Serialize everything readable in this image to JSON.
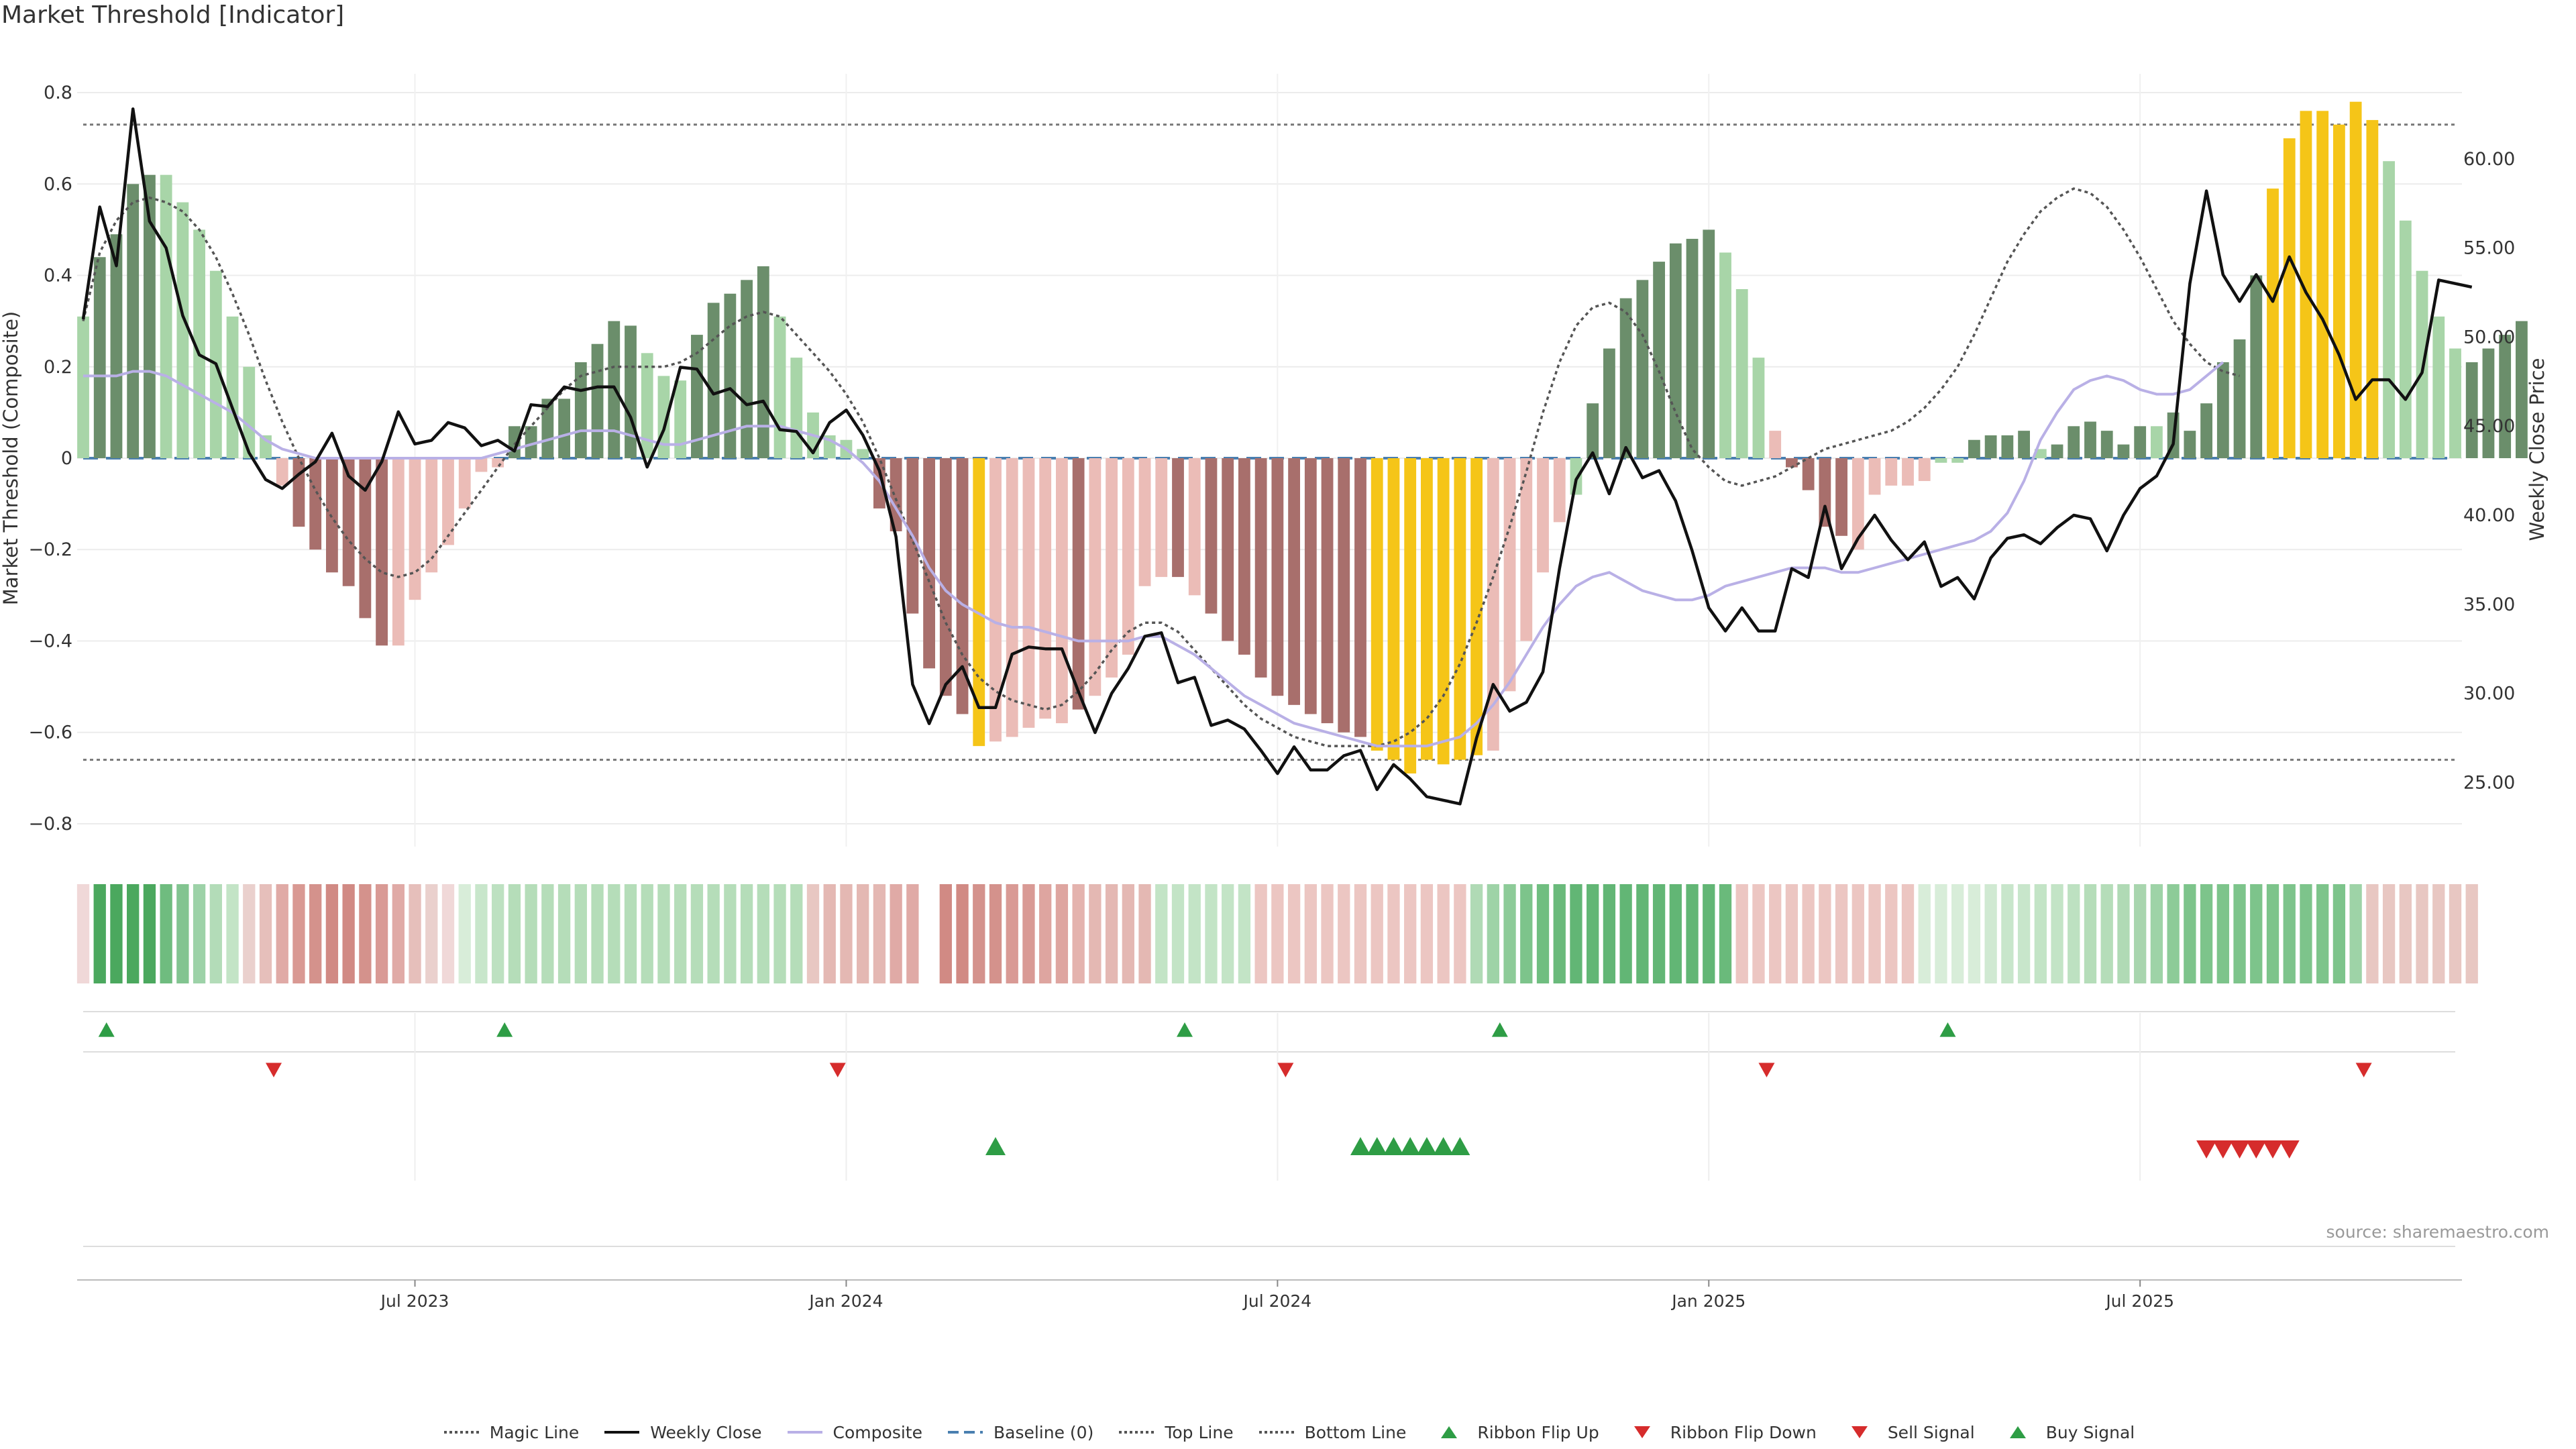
{
  "title": "Market Threshold [Indicator]",
  "source": "source: sharemaestro.com",
  "colors": {
    "dark_green": "#6b8e6b",
    "light_green": "#a8d5a8",
    "dark_red": "#a86f6c",
    "light_red": "#ebbcb7",
    "yellow": "#f5c518",
    "weekly_close": "#111111",
    "composite": "#b9b0e6",
    "magic": "#555555",
    "baseline": "#4a7fb0",
    "threshold_line": "#777777",
    "buy": "#2e9d45",
    "sell": "#d62c2c"
  },
  "chart_data": {
    "type": "bar",
    "ylabel_left": "Market Threshold (Composite)",
    "ylabel_right": "Weekly Close Price",
    "left_ticks": [
      "0.8",
      "0.6",
      "0.4",
      "0.2",
      "0",
      "−0.2",
      "−0.4",
      "−0.6",
      "−0.8"
    ],
    "left_tick_values": [
      0.8,
      0.6,
      0.4,
      0.2,
      0,
      -0.2,
      -0.4,
      -0.6,
      -0.8
    ],
    "right_ticks": [
      "60.00",
      "55.00",
      "50.00",
      "45.00",
      "40.00",
      "35.00",
      "30.00",
      "25.00"
    ],
    "right_tick_values": [
      60,
      55,
      50,
      45,
      40,
      35,
      30,
      25
    ],
    "left_ylim": [
      -0.85,
      0.85
    ],
    "right_ylim": [
      21.4,
      65.0
    ],
    "top_line": 0.73,
    "bottom_line": -0.66,
    "x_ticks": [
      {
        "label": "Jul 2023",
        "week": 20
      },
      {
        "label": "Jan 2024",
        "week": 46
      },
      {
        "label": "Jul 2024",
        "week": 72
      },
      {
        "label": "Jan 2025",
        "week": 98
      },
      {
        "label": "Jul 2025",
        "week": 124
      }
    ],
    "n_weeks": 144,
    "composite_bars": [
      0.31,
      0.44,
      0.49,
      0.6,
      0.62,
      0.62,
      0.56,
      0.5,
      0.41,
      0.31,
      0.2,
      0.05,
      -0.06,
      -0.15,
      -0.2,
      -0.25,
      -0.28,
      -0.35,
      -0.41,
      -0.41,
      -0.31,
      -0.25,
      -0.19,
      -0.11,
      -0.03,
      -0.02,
      0.07,
      0.07,
      0.13,
      0.13,
      0.21,
      0.25,
      0.3,
      0.29,
      0.23,
      0.18,
      0.17,
      0.27,
      0.34,
      0.36,
      0.39,
      0.42,
      0.31,
      0.22,
      0.1,
      0.05,
      0.04,
      0.02,
      -0.11,
      -0.16,
      -0.34,
      -0.46,
      -0.52,
      -0.56,
      -0.63,
      -0.62,
      -0.61,
      -0.59,
      -0.57,
      -0.58,
      -0.55,
      -0.52,
      -0.48,
      -0.43,
      -0.28,
      -0.26,
      -0.26,
      -0.3,
      -0.34,
      -0.4,
      -0.43,
      -0.48,
      -0.52,
      -0.54,
      -0.56,
      -0.58,
      -0.6,
      -0.61,
      -0.64,
      -0.66,
      -0.69,
      -0.66,
      -0.67,
      -0.66,
      -0.65,
      -0.64,
      -0.51,
      -0.4,
      -0.25,
      -0.14,
      -0.08,
      0.12,
      0.24,
      0.35,
      0.39,
      0.43,
      0.47,
      0.48,
      0.5,
      0.45,
      0.37,
      0.22,
      0.06,
      -0.02,
      -0.07,
      -0.15,
      -0.17,
      -0.2,
      -0.08,
      -0.06,
      -0.06,
      -0.05,
      -0.01,
      -0.01,
      0.04,
      0.05,
      0.05,
      0.06,
      0.02,
      0.03,
      0.07,
      0.08,
      0.06,
      0.03,
      0.07,
      0.07,
      0.1,
      0.06,
      0.12,
      0.21,
      0.26,
      0.4,
      0.59,
      0.7,
      0.76,
      0.76,
      0.73,
      0.78,
      0.74,
      0.65,
      0.52,
      0.41,
      0.31,
      0.24,
      0.21,
      0.24,
      0.27,
      0.3
    ],
    "bar_color_classes": [
      "lg",
      "dg",
      "dg",
      "dg",
      "dg",
      "lg",
      "lg",
      "lg",
      "lg",
      "lg",
      "lg",
      "lg",
      "lr",
      "dr",
      "dr",
      "dr",
      "dr",
      "dr",
      "dr",
      "lr",
      "lr",
      "lr",
      "lr",
      "lr",
      "lr",
      "lr",
      "dg",
      "dg",
      "dg",
      "dg",
      "dg",
      "dg",
      "dg",
      "dg",
      "lg",
      "lg",
      "lg",
      "dg",
      "dg",
      "dg",
      "dg",
      "dg",
      "lg",
      "lg",
      "lg",
      "lg",
      "lg",
      "lg",
      "dr",
      "dr",
      "dr",
      "dr",
      "dr",
      "dr",
      "y",
      "lr",
      "lr",
      "lr",
      "lr",
      "lr",
      "dr",
      "lr",
      "lr",
      "lr",
      "lr",
      "lr",
      "dr",
      "lr",
      "dr",
      "dr",
      "dr",
      "dr",
      "dr",
      "dr",
      "dr",
      "dr",
      "dr",
      "dr",
      "y",
      "y",
      "y",
      "y",
      "y",
      "y",
      "y",
      "lr",
      "lr",
      "lr",
      "lr",
      "lr",
      "lg",
      "dg",
      "dg",
      "dg",
      "dg",
      "dg",
      "dg",
      "dg",
      "dg",
      "lg",
      "lg",
      "lg",
      "lr",
      "dr",
      "dr",
      "dr",
      "dr",
      "lr",
      "lr",
      "lr",
      "lr",
      "lr",
      "lg",
      "lg",
      "dg",
      "dg",
      "dg",
      "dg",
      "lg",
      "dg",
      "dg",
      "dg",
      "dg",
      "dg",
      "dg",
      "lg",
      "dg",
      "dg",
      "dg",
      "dg",
      "dg",
      "dg",
      "y",
      "y",
      "y",
      "y",
      "y",
      "y",
      "y",
      "lg",
      "lg",
      "lg",
      "lg",
      "lg",
      "dg",
      "dg",
      "dg",
      "dg"
    ],
    "magic_line": [
      0.3,
      0.45,
      0.52,
      0.56,
      0.57,
      0.56,
      0.54,
      0.5,
      0.44,
      0.36,
      0.27,
      0.17,
      0.08,
      0.0,
      -0.07,
      -0.13,
      -0.18,
      -0.22,
      -0.25,
      -0.26,
      -0.25,
      -0.22,
      -0.17,
      -0.12,
      -0.07,
      -0.02,
      0.03,
      0.07,
      0.11,
      0.15,
      0.18,
      0.19,
      0.2,
      0.2,
      0.2,
      0.2,
      0.21,
      0.23,
      0.26,
      0.29,
      0.31,
      0.32,
      0.31,
      0.27,
      0.23,
      0.19,
      0.14,
      0.08,
      0.0,
      -0.09,
      -0.18,
      -0.27,
      -0.36,
      -0.43,
      -0.48,
      -0.51,
      -0.53,
      -0.54,
      -0.55,
      -0.54,
      -0.51,
      -0.47,
      -0.42,
      -0.38,
      -0.36,
      -0.36,
      -0.38,
      -0.42,
      -0.46,
      -0.5,
      -0.54,
      -0.57,
      -0.59,
      -0.61,
      -0.62,
      -0.63,
      -0.63,
      -0.63,
      -0.63,
      -0.62,
      -0.6,
      -0.57,
      -0.52,
      -0.45,
      -0.36,
      -0.26,
      -0.15,
      -0.03,
      0.1,
      0.21,
      0.29,
      0.33,
      0.34,
      0.32,
      0.27,
      0.19,
      0.1,
      0.02,
      -0.02,
      -0.05,
      -0.06,
      -0.05,
      -0.04,
      -0.02,
      0.0,
      0.02,
      0.03,
      0.04,
      0.05,
      0.06,
      0.08,
      0.11,
      0.15,
      0.2,
      0.27,
      0.35,
      0.43,
      0.49,
      0.54,
      0.57,
      0.59,
      0.58,
      0.55,
      0.5,
      0.44,
      0.37,
      0.3,
      0.25,
      0.21,
      0.19,
      0.18
    ],
    "composite_line": [
      0.18,
      0.18,
      0.18,
      0.19,
      0.19,
      0.18,
      0.16,
      0.14,
      0.12,
      0.1,
      0.07,
      0.04,
      0.02,
      0.01,
      0.0,
      0.0,
      0.0,
      0.0,
      0.0,
      0.0,
      0.0,
      0.0,
      0.0,
      0.0,
      0.0,
      0.01,
      0.02,
      0.03,
      0.04,
      0.05,
      0.06,
      0.06,
      0.06,
      0.05,
      0.04,
      0.03,
      0.03,
      0.04,
      0.05,
      0.06,
      0.07,
      0.07,
      0.07,
      0.06,
      0.05,
      0.04,
      0.02,
      -0.01,
      -0.05,
      -0.11,
      -0.17,
      -0.24,
      -0.29,
      -0.32,
      -0.34,
      -0.36,
      -0.37,
      -0.37,
      -0.38,
      -0.39,
      -0.4,
      -0.4,
      -0.4,
      -0.4,
      -0.39,
      -0.39,
      -0.41,
      -0.43,
      -0.46,
      -0.49,
      -0.52,
      -0.54,
      -0.56,
      -0.58,
      -0.59,
      -0.6,
      -0.61,
      -0.62,
      -0.63,
      -0.63,
      -0.63,
      -0.63,
      -0.62,
      -0.61,
      -0.58,
      -0.54,
      -0.49,
      -0.43,
      -0.37,
      -0.32,
      -0.28,
      -0.26,
      -0.25,
      -0.27,
      -0.29,
      -0.3,
      -0.31,
      -0.31,
      -0.3,
      -0.28,
      -0.27,
      -0.26,
      -0.25,
      -0.24,
      -0.24,
      -0.24,
      -0.25,
      -0.25,
      -0.24,
      -0.23,
      -0.22,
      -0.21,
      -0.2,
      -0.19,
      -0.18,
      -0.16,
      -0.12,
      -0.05,
      0.04,
      0.1,
      0.15,
      0.17,
      0.18,
      0.17,
      0.15,
      0.14,
      0.14,
      0.15,
      0.18,
      0.21
    ],
    "weekly_close": [
      51.0,
      57.3,
      54.0,
      62.8,
      56.5,
      55.0,
      51.2,
      49.0,
      48.5,
      46.0,
      43.5,
      42.0,
      41.5,
      42.3,
      43.0,
      44.6,
      42.2,
      41.4,
      43.0,
      45.8,
      44.0,
      44.2,
      45.2,
      44.9,
      43.9,
      44.2,
      43.6,
      46.2,
      46.1,
      47.2,
      47.0,
      47.2,
      47.2,
      45.5,
      42.7,
      44.8,
      48.3,
      48.2,
      46.8,
      47.1,
      46.2,
      46.4,
      44.8,
      44.7,
      43.5,
      45.2,
      45.9,
      44.5,
      42.5,
      38.8,
      30.5,
      28.3,
      30.5,
      31.5,
      29.2,
      29.2,
      32.2,
      32.6,
      32.5,
      32.5,
      30.1,
      27.8,
      30.0,
      31.4,
      33.2,
      33.4,
      30.6,
      30.9,
      28.2,
      28.5,
      28.0,
      26.8,
      25.5,
      27.0,
      25.7,
      25.7,
      26.5,
      26.8,
      24.6,
      26.0,
      25.2,
      24.2,
      24.0,
      23.8,
      27.5,
      30.5,
      29.0,
      29.5,
      31.2,
      37.0,
      42.0,
      43.5,
      41.2,
      43.8,
      42.1,
      42.5,
      40.8,
      38.0,
      34.8,
      33.5,
      34.8,
      33.5,
      33.5,
      37.0,
      36.5,
      40.5,
      37.0,
      38.7,
      40.0,
      38.6,
      37.5,
      38.5,
      36.0,
      36.5,
      35.3,
      37.6,
      38.7,
      38.9,
      38.4,
      39.3,
      40.0,
      39.8,
      38.0,
      40.0,
      41.5,
      42.2,
      44.0,
      53.0,
      58.2,
      53.5,
      52.0,
      53.5,
      52.0,
      54.5,
      52.5,
      51.0,
      49.0,
      46.5,
      47.6,
      47.6,
      46.5,
      48.0,
      53.2,
      53.0,
      52.8
    ]
  },
  "ribbon": {
    "colors": [
      "#f0d8d8",
      "#4ba85e",
      "#4ba85e",
      "#4ba85e",
      "#4ba85e",
      "#6fbc7f",
      "#82c490",
      "#9dd2a8",
      "#b3dcb8",
      "#c3e4c6",
      "#ead0cd",
      "#e6bfbb",
      "#e0aaa6",
      "#d99993",
      "#d4928c",
      "#d18a84",
      "#d18a84",
      "#d4928c",
      "#d99a95",
      "#e0aaa6",
      "#e6bfbb",
      "#ead0cd",
      "#f0d8d8",
      "#d8edd9",
      "#c8e6cb",
      "#bde1c1",
      "#b5ddb9",
      "#b5ddb9",
      "#b5ddb9",
      "#b5ddb9",
      "#b5ddb9",
      "#b5ddb9",
      "#b5ddb9",
      "#b5ddb9",
      "#b5ddb9",
      "#b5ddb9",
      "#b5ddb9",
      "#b5ddb9",
      "#b5ddb9",
      "#b5ddb9",
      "#b5ddb9",
      "#b5ddb9",
      "#b5ddb9",
      "#b5ddb9",
      "#e8c7c2",
      "#e4b8b3",
      "#e4b8b3",
      "#e4b8b3",
      "#e4b8b3",
      "#e0aaa6",
      "#e0aaa6",
      "#ffffff",
      "#d18a84",
      "#d18a84",
      "#d4928c",
      "#d4928c",
      "#d99a95",
      "#d99a95",
      "#dea5a0",
      "#dea5a0",
      "#e4b3ae",
      "#e4b8b3",
      "#e4b8b3",
      "#e4b8b3",
      "#e4b8b3",
      "#c3e4c6",
      "#c3e4c6",
      "#c3e4c6",
      "#c3e4c6",
      "#c3e4c6",
      "#c3e4c6",
      "#ecc6c2",
      "#ecc6c2",
      "#ecc6c2",
      "#ecc6c2",
      "#ecc6c2",
      "#ecc6c2",
      "#ecc6c2",
      "#ecc6c2",
      "#ecc6c2",
      "#ecc6c2",
      "#ecc6c2",
      "#ecc6c2",
      "#ecc6c2",
      "#b0dab5",
      "#9ed3a7",
      "#8dcb98",
      "#7dc48b",
      "#70be80",
      "#6aba7b",
      "#62b675",
      "#62b675",
      "#62b675",
      "#62b675",
      "#62b675",
      "#62b675",
      "#62b675",
      "#62b675",
      "#62b675",
      "#6aba7b",
      "#ecc6c2",
      "#ecc6c2",
      "#ecc6c2",
      "#ecc6c2",
      "#ecc6c2",
      "#ecc6c2",
      "#ecc6c2",
      "#ecc6c2",
      "#ecc6c2",
      "#ecc6c2",
      "#ecc6c2",
      "#d8edd9",
      "#d8edd9",
      "#d8edd9",
      "#d8edd9",
      "#d0e9d2",
      "#c8e6cb",
      "#c8e6cb",
      "#c3e4c6",
      "#c3e4c6",
      "#bde1c1",
      "#b5ddb9",
      "#b5ddb9",
      "#b0dab5",
      "#a8d5ae",
      "#9ed3a7",
      "#8dcb98",
      "#7dc48b",
      "#7dc48b",
      "#7dc48b",
      "#7dc48b",
      "#7dc48b",
      "#7dc48b",
      "#7dc48b",
      "#7dc48b",
      "#7dc48b",
      "#7dc48b",
      "#9ed3a7",
      "#e8c7c2",
      "#e8c7c2",
      "#e8c7c2",
      "#e8c7c2",
      "#e8c7c2",
      "#e8c7c2",
      "#e8c7c2"
    ]
  },
  "ribbon_flip_up_weeks": [
    1,
    25,
    66,
    85,
    112
  ],
  "ribbon_flip_down_weeks": [
    11,
    45,
    72,
    101,
    137
  ],
  "buy_signal_weeks": [
    55,
    77,
    78,
    79,
    80,
    81,
    82,
    83
  ],
  "sell_signal_weeks": [
    128,
    129,
    130,
    131,
    132,
    133
  ],
  "legend": [
    {
      "label": "Magic Line",
      "icon": "dotted-line"
    },
    {
      "label": "Weekly Close",
      "icon": "solid-line"
    },
    {
      "label": "Composite",
      "icon": "lavender-line"
    },
    {
      "label": "Baseline (0)",
      "icon": "dashed-line"
    },
    {
      "label": "Top Line",
      "icon": "dotted-line"
    },
    {
      "label": "Bottom Line",
      "icon": "dotted-line"
    },
    {
      "label": "Ribbon Flip Up",
      "icon": "triangle-up"
    },
    {
      "label": "Ribbon Flip Down",
      "icon": "triangle-down"
    },
    {
      "label": "Sell Signal",
      "icon": "triangle-down"
    },
    {
      "label": "Buy Signal",
      "icon": "triangle-up"
    }
  ]
}
